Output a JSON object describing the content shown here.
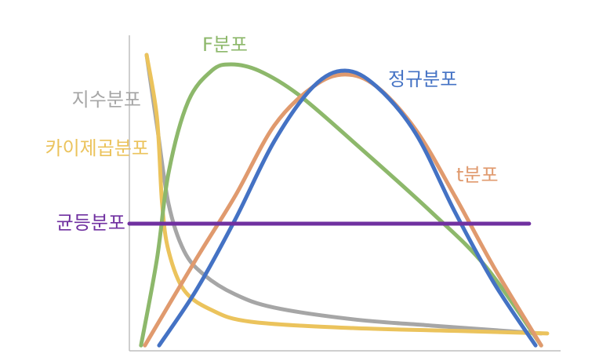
{
  "chart_data": {
    "type": "line",
    "xlim": [
      0,
      100
    ],
    "ylim": [
      0,
      100
    ],
    "series": [
      {
        "name": "지수분포",
        "color": "#a6a6a6",
        "x": [
          4.0,
          6.4,
          9.1,
          12.7,
          17.3,
          24.5,
          33.6,
          51.8,
          70.0,
          95.5
        ],
        "values": [
          93.8,
          71.4,
          46.5,
          31.6,
          24.1,
          17.9,
          13.7,
          10.0,
          8.0,
          5.5
        ]
      },
      {
        "name": "카이제곱분포",
        "color": "#ebc35c",
        "x": [
          4.0,
          6.4,
          7.6,
          9.1,
          12.7,
          19.1,
          28.2,
          51.8,
          79.1,
          96.9
        ],
        "values": [
          93.8,
          73.9,
          46.5,
          31.6,
          19.2,
          12.9,
          9.2,
          7.2,
          6.2,
          5.5
        ]
      },
      {
        "name": "F분포",
        "color": "#8db86b",
        "x": [
          2.7,
          6.4,
          9.1,
          13.6,
          19.1,
          23.6,
          30.0,
          39.1,
          51.8,
          70.0,
          82.7,
          95.5
        ],
        "values": [
          1.7,
          29.1,
          56.5,
          78.9,
          88.8,
          90.8,
          88.8,
          81.3,
          66.4,
          44.0,
          26.6,
          1.7
        ]
      },
      {
        "name": "t분포",
        "color": "#e09a6e",
        "x": [
          3.6,
          15.5,
          24.5,
          33.6,
          42.7,
          50.0,
          57.3,
          66.4,
          75.5,
          84.5,
          95.5
        ],
        "values": [
          1.7,
          29.1,
          49.0,
          71.4,
          83.8,
          87.6,
          83.8,
          70.1,
          49.0,
          26.6,
          1.7
        ]
      },
      {
        "name": "정규분포",
        "color": "#4472c4",
        "x": [
          6.9,
          15.5,
          24.5,
          33.6,
          42.7,
          50.0,
          57.3,
          66.4,
          75.5,
          84.5,
          94.2
        ],
        "values": [
          1.7,
          19.2,
          41.5,
          66.4,
          83.8,
          88.8,
          83.8,
          68.9,
          44.0,
          21.6,
          1.7
        ]
      },
      {
        "name": "균등분포",
        "color": "#7030a0",
        "x": [
          0,
          92.7
        ],
        "values": [
          40.3,
          40.3
        ]
      }
    ]
  }
}
